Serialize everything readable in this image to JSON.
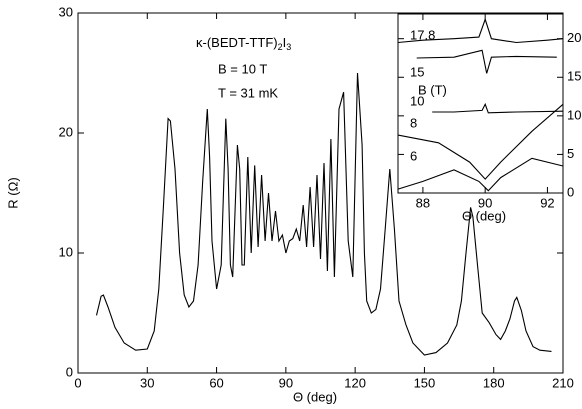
{
  "chart_data": [
    {
      "type": "line",
      "xlabel": "Θ (deg)",
      "ylabel": "R (Ω)",
      "compound": [
        "κ-(BEDT-TTF)",
        "2",
        "I",
        "3"
      ],
      "annotations": [
        "B = 10 T",
        "T = 31 mK"
      ],
      "xlim": [
        0,
        210
      ],
      "ylim": [
        0,
        30
      ],
      "xticks": [
        0,
        30,
        60,
        90,
        120,
        150,
        180,
        210
      ],
      "yticks": [
        0,
        10,
        20,
        30
      ],
      "series": [
        {
          "color": "#000000",
          "x": [
            8,
            10,
            11,
            13,
            16,
            20,
            25,
            30,
            33,
            35,
            37,
            39,
            40,
            42,
            44,
            46,
            48,
            50,
            52,
            54,
            56,
            57,
            58,
            60,
            62,
            64,
            65,
            66,
            67,
            69,
            70,
            71,
            72,
            73.5,
            75,
            76.5,
            78,
            79.5,
            81,
            82.5,
            84,
            85.5,
            87,
            88.5,
            90,
            91.5,
            93,
            94.5,
            96,
            97.5,
            99,
            100.5,
            102,
            103.5,
            105,
            106.5,
            108,
            109.5,
            111,
            113,
            115,
            117,
            119,
            121,
            123,
            124,
            125,
            127,
            129,
            131,
            133,
            135,
            137,
            139,
            142,
            145,
            150,
            155,
            160,
            164,
            166,
            168,
            170,
            171,
            173,
            175,
            178,
            181,
            183,
            185,
            187,
            189,
            190,
            192,
            194,
            197,
            200,
            205
          ],
          "values": [
            4.8,
            6.4,
            6.5,
            5.5,
            3.8,
            2.5,
            1.9,
            2.0,
            3.5,
            7,
            14,
            21.2,
            21.0,
            17,
            10,
            6.5,
            5.5,
            6.0,
            9,
            16,
            22.0,
            18,
            11,
            7,
            9,
            21.2,
            17,
            9,
            8,
            19,
            17,
            9,
            9,
            18,
            10,
            17.3,
            10.5,
            16.5,
            11,
            15,
            11,
            13.5,
            11,
            11.5,
            10,
            11,
            11.2,
            12,
            11,
            14,
            10.5,
            15.5,
            10.5,
            16.5,
            9.5,
            17.5,
            8.5,
            19.5,
            8,
            22,
            23.4,
            11,
            8,
            25.0,
            19,
            10,
            6,
            5,
            5.3,
            7,
            12,
            17.0,
            12,
            6,
            4,
            2.5,
            1.5,
            1.7,
            2.5,
            4,
            6,
            10,
            13.8,
            13,
            9,
            5,
            4.2,
            3.2,
            2.8,
            3.5,
            4.5,
            6,
            6.3,
            5.2,
            3.5,
            2.2,
            1.9,
            1.8
          ]
        }
      ]
    },
    {
      "type": "line",
      "xlabel": "Θ (deg)",
      "legend_title": "B (T)",
      "xlim": [
        87.2,
        92.5
      ],
      "ylim": [
        0,
        23.2
      ],
      "xticks": [
        88,
        90,
        92
      ],
      "yticks": [
        0,
        5,
        10,
        15,
        20
      ],
      "series": [
        {
          "name": "17.8",
          "color": "#000000",
          "x": [
            87.2,
            88,
            89,
            89.8,
            90,
            90.2,
            91,
            92,
            92.5
          ],
          "values": [
            19.5,
            19.8,
            20,
            20.2,
            22.5,
            20,
            19.5,
            19.8,
            20
          ]
        },
        {
          "name": "15",
          "color": "#000000",
          "x": [
            87.8,
            89,
            89.9,
            90.05,
            90.2,
            91,
            92.3
          ],
          "values": [
            17.5,
            17.6,
            18.5,
            15.5,
            17.6,
            17.7,
            17.6
          ]
        },
        {
          "name": "10",
          "color": "#000000",
          "x": [
            88.3,
            89,
            89.9,
            90,
            90.1,
            91,
            92.5
          ],
          "values": [
            10.5,
            10.5,
            10.7,
            11.5,
            10.4,
            10.5,
            10.6
          ]
        },
        {
          "name": "8",
          "color": "#000000",
          "x": [
            87.2,
            88.5,
            89.5,
            90,
            90.5,
            91.5,
            92.5
          ],
          "values": [
            7.5,
            6.5,
            4,
            1.8,
            4,
            8,
            11.5
          ]
        },
        {
          "name": "6",
          "color": "#000000",
          "x": [
            87.2,
            88,
            89,
            89.8,
            90.1,
            90.5,
            91.5,
            92.5
          ],
          "values": [
            0.5,
            1.5,
            3,
            1.5,
            0.3,
            2,
            4.5,
            3.5
          ]
        }
      ]
    }
  ]
}
